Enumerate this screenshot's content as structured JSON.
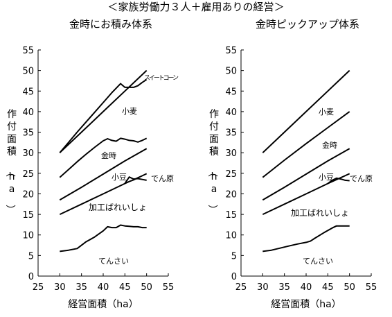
{
  "main_title": "＜家族労働力３人＋雇用ありの経営＞",
  "chart_data": [
    {
      "type": "line",
      "title": "金時にお積み体系",
      "xlabel": "経営面積（ha）",
      "ylabel": "作付面積（ha）",
      "xlim": [
        25,
        55
      ],
      "ylim": [
        0,
        55
      ],
      "xticks": [
        25,
        30,
        35,
        40,
        45,
        50,
        55
      ],
      "yticks": [
        0,
        5,
        10,
        15,
        20,
        25,
        30,
        35,
        40,
        45,
        50,
        55
      ],
      "grid": false,
      "legend": "none (series labeled directly on chart)",
      "series": [
        {
          "name": "スイートコーン",
          "x": [
            30,
            32,
            34,
            36,
            38,
            40,
            42,
            44,
            45,
            46,
            47,
            48,
            49,
            50
          ],
          "y": [
            30,
            32.5,
            35,
            37.4,
            39.8,
            42.2,
            44.6,
            46.8,
            45.9,
            45.9,
            45.9,
            46.3,
            47.1,
            47.8
          ]
        },
        {
          "name": "小麦",
          "x": [
            30,
            35,
            40,
            45,
            50
          ],
          "y": [
            30,
            35,
            40,
            45,
            50
          ]
        },
        {
          "name": "金時",
          "x": [
            30,
            32,
            34,
            36,
            38,
            40,
            41,
            42,
            43,
            44,
            45,
            46,
            47,
            48,
            49,
            50
          ],
          "y": [
            24,
            25.9,
            27.8,
            29.6,
            31.3,
            32.9,
            33.4,
            33,
            32.8,
            33.5,
            33.3,
            33,
            32.9,
            32.6,
            33,
            33.5
          ]
        },
        {
          "name": "小豆",
          "x": [
            30,
            35,
            40,
            45,
            50
          ],
          "y": [
            18.5,
            21.6,
            24.8,
            28,
            31
          ]
        },
        {
          "name": "でん原",
          "x": [
            30,
            35,
            40,
            45,
            46,
            47,
            48,
            49,
            50
          ],
          "y": [
            15,
            17.5,
            20,
            22.5,
            23,
            23.4,
            23.9,
            24.4,
            24.9
          ]
        },
        {
          "name": "加工ばれいしょ",
          "x": [
            45,
            46,
            47,
            48,
            49,
            50
          ],
          "y": [
            22.5,
            24.1,
            23.6,
            23.7,
            23.5,
            23.3
          ]
        },
        {
          "name": "てんさい",
          "x": [
            30,
            32,
            34,
            36,
            38,
            40,
            41,
            42,
            43,
            44,
            45,
            46,
            47,
            48,
            49,
            50
          ],
          "y": [
            6,
            6.3,
            6.7,
            8.3,
            9.5,
            11,
            12,
            11.8,
            11.8,
            12.4,
            12.2,
            12.1,
            12,
            12,
            11.8,
            11.8
          ]
        }
      ]
    },
    {
      "type": "line",
      "title": "金時ピックアップ体系",
      "xlabel": "経営面積（ha）",
      "ylabel": "作付面積（ha）",
      "xlim": [
        25,
        55
      ],
      "ylim": [
        0,
        55
      ],
      "xticks": [
        25,
        30,
        35,
        40,
        45,
        50,
        55
      ],
      "yticks": [
        0,
        5,
        10,
        15,
        20,
        25,
        30,
        35,
        40,
        45,
        50,
        55
      ],
      "grid": false,
      "legend": "none (series labeled directly on chart)",
      "series": [
        {
          "name": "小麦",
          "x": [
            30,
            35,
            40,
            45,
            50
          ],
          "y": [
            30,
            35,
            40,
            45,
            50
          ]
        },
        {
          "name": "金時",
          "x": [
            30,
            35,
            40,
            45,
            50
          ],
          "y": [
            24,
            28.2,
            32.2,
            36.1,
            40
          ]
        },
        {
          "name": "小豆",
          "x": [
            30,
            35,
            40,
            45,
            50
          ],
          "y": [
            18.5,
            21.6,
            24.8,
            28,
            31
          ]
        },
        {
          "name": "でん原",
          "x": [
            30,
            35,
            40,
            45,
            50
          ],
          "y": [
            15,
            17.5,
            20,
            22.5,
            24.9
          ]
        },
        {
          "name": "加工ばれいしょ",
          "x": [
            45,
            46,
            47,
            48,
            49,
            50
          ],
          "y": [
            22.5,
            23.3,
            23.8,
            23.6,
            23.3,
            23.2
          ]
        },
        {
          "name": "てんさい",
          "x": [
            30,
            32,
            34,
            36,
            38,
            40,
            41,
            42,
            44,
            46,
            47,
            48,
            50
          ],
          "y": [
            6,
            6.3,
            6.8,
            7.3,
            7.8,
            8.2,
            8.5,
            9.2,
            10.5,
            11.7,
            12.2,
            12.2,
            12.2
          ]
        }
      ]
    }
  ]
}
